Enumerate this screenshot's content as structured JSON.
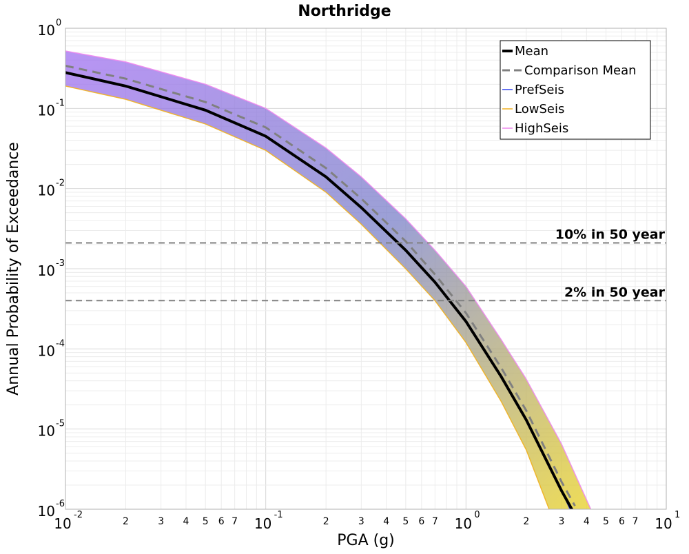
{
  "chart_data": {
    "type": "line",
    "title": "Northridge",
    "xlabel": "PGA (g)",
    "ylabel": "Annual Probability of Exceedance",
    "x_scale": "log",
    "y_scale": "log",
    "xlim": [
      0.01,
      10
    ],
    "ylim": [
      1e-06,
      1
    ],
    "grid": true,
    "legend_position": "top-right",
    "x_ticks": [
      {
        "value": 0.01,
        "base": "10",
        "exp": "-2"
      },
      {
        "value": 0.1,
        "base": "10",
        "exp": "-1"
      },
      {
        "value": 1,
        "base": "10",
        "exp": "0"
      },
      {
        "value": 10,
        "base": "10",
        "exp": "1"
      }
    ],
    "x_minor_tick_labels": [
      "2",
      "3",
      "4",
      "5",
      "6",
      "7"
    ],
    "y_ticks": [
      {
        "value": 1,
        "base": "10",
        "exp": "0"
      },
      {
        "value": 0.1,
        "base": "10",
        "exp": "-1"
      },
      {
        "value": 0.01,
        "base": "10",
        "exp": "-2"
      },
      {
        "value": 0.001,
        "base": "10",
        "exp": "-3"
      },
      {
        "value": 0.0001,
        "base": "10",
        "exp": "-4"
      },
      {
        "value": 1e-05,
        "base": "10",
        "exp": "-5"
      },
      {
        "value": 1e-06,
        "base": "10",
        "exp": "-6"
      }
    ],
    "reference_lines": [
      {
        "label": "10% in 50 year",
        "y": 0.0021,
        "color": "#808080"
      },
      {
        "label": "2% in 50 year",
        "y": 0.0004,
        "color": "#808080"
      }
    ],
    "series": [
      {
        "name": "Mean",
        "color": "#000000",
        "style": "solid",
        "x": [
          0.01,
          0.02,
          0.05,
          0.1,
          0.2,
          0.3,
          0.5,
          0.7,
          1,
          1.5,
          2,
          3,
          3.5
        ],
        "y": [
          0.28,
          0.19,
          0.095,
          0.045,
          0.014,
          0.0058,
          0.0017,
          0.00068,
          0.00022,
          4.5e-05,
          1.3e-05,
          1.7e-06,
          8.5e-07
        ]
      },
      {
        "name": "Comparison Mean",
        "color": "#808080",
        "style": "dashed",
        "x": [
          0.01,
          0.02,
          0.05,
          0.1,
          0.2,
          0.3,
          0.5,
          0.7,
          1,
          1.5,
          2,
          3,
          3.5
        ],
        "y": [
          0.34,
          0.235,
          0.12,
          0.058,
          0.018,
          0.0075,
          0.0022,
          0.00085,
          0.00028,
          5.8e-05,
          1.7e-05,
          2.2e-06,
          1.1e-06
        ]
      },
      {
        "name": "PrefSeis",
        "color": "#3344ee",
        "style": "band",
        "x": [
          0.01,
          0.02,
          0.05,
          0.1,
          0.2,
          0.3,
          0.5,
          0.7,
          1,
          1.5,
          2,
          3,
          4
        ],
        "y": [
          0.28,
          0.19,
          0.095,
          0.045,
          0.014,
          0.0058,
          0.0017,
          0.00068,
          0.00022,
          4.5e-05,
          1.3e-05,
          1.7e-06,
          3.5e-07
        ]
      },
      {
        "name": "LowSeis",
        "color": "#f0b020",
        "style": "band",
        "x": [
          0.01,
          0.02,
          0.05,
          0.1,
          0.2,
          0.3,
          0.5,
          0.7,
          1,
          1.5,
          2,
          2.6
        ],
        "y": [
          0.19,
          0.13,
          0.064,
          0.03,
          0.009,
          0.0036,
          0.001,
          0.0004,
          0.00012,
          2.2e-05,
          5.5e-06,
          1e-06
        ]
      },
      {
        "name": "HighSeis",
        "color": "#ee88ee",
        "style": "band",
        "x": [
          0.01,
          0.02,
          0.05,
          0.1,
          0.2,
          0.3,
          0.5,
          0.7,
          1,
          1.5,
          2,
          3,
          4.2
        ],
        "y": [
          0.52,
          0.38,
          0.2,
          0.1,
          0.032,
          0.014,
          0.0042,
          0.0017,
          0.0006,
          0.00013,
          4.2e-05,
          6.5e-06,
          1e-06
        ]
      }
    ],
    "band_fill": {
      "upper_color": "#a070f0",
      "lower_color": "#e8d020",
      "middle_color": "#7a80c8"
    }
  }
}
